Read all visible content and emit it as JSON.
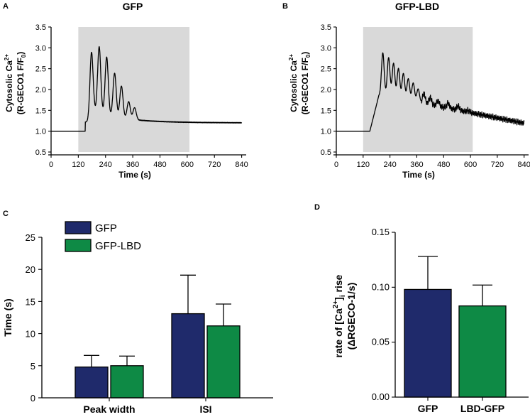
{
  "figure": {
    "panel_letters": [
      "A",
      "B",
      "C",
      "D"
    ]
  },
  "colors": {
    "gfp": "#1f2a6b",
    "gfp_lbd": "#0e8a45",
    "stim_shade": "#d9d9d9",
    "trace": "#000000"
  },
  "chart_data": [
    {
      "type": "line",
      "panel": "A",
      "title": "GFP",
      "xlabel": "Time (s)",
      "ylabel_line1": "Cytosolic Ca",
      "ylabel_line1_sup": "2+",
      "ylabel_line2": "(R-GECO1 F/F",
      "ylabel_line2_sub": "0",
      "ylabel_line2_end": ")",
      "xlim": [
        0,
        860
      ],
      "ylim": [
        0.5,
        3.5
      ],
      "xticks": [
        0,
        120,
        240,
        360,
        480,
        600,
        720,
        840
      ],
      "yticks": [
        "0.5",
        "1.0",
        "1.5",
        "2.0",
        "2.5",
        "3.0",
        "3.5"
      ],
      "shaded_region": [
        120,
        610
      ],
      "baseline": 1.0,
      "peaks": [
        {
          "t": 178,
          "amp": 3.03,
          "floor": 1.45
        },
        {
          "t": 212,
          "amp": 3.05,
          "floor": 1.45
        },
        {
          "t": 245,
          "amp": 2.82,
          "floor": 1.42
        },
        {
          "t": 280,
          "amp": 2.45,
          "floor": 1.4
        },
        {
          "t": 310,
          "amp": 2.15,
          "floor": 1.38
        },
        {
          "t": 342,
          "amp": 1.78,
          "floor": 1.36
        },
        {
          "t": 368,
          "amp": 1.62,
          "floor": 1.33
        }
      ],
      "end_value": 1.15
    },
    {
      "type": "line",
      "panel": "B",
      "title": "GFP-LBD",
      "xlabel": "Time (s)",
      "ylabel_line1": "Cytosolic Ca",
      "ylabel_line1_sup": "2+",
      "ylabel_line2": "(R-GECO1 F/F",
      "ylabel_line2_sub": "0",
      "ylabel_line2_end": ")",
      "xlim": [
        0,
        860
      ],
      "ylim": [
        0.5,
        3.5
      ],
      "xticks": [
        0,
        120,
        240,
        360,
        480,
        600,
        720,
        840
      ],
      "yticks": [
        "0.5",
        "1.0",
        "1.5",
        "2.0",
        "2.5",
        "3.0",
        "3.5"
      ],
      "shaded_region": [
        120,
        610
      ],
      "baseline": 1.0,
      "peaks": [
        {
          "t": 208,
          "amp": 2.83,
          "floor": 1.8
        },
        {
          "t": 234,
          "amp": 2.73,
          "floor": 1.8
        },
        {
          "t": 256,
          "amp": 2.62,
          "floor": 1.8
        },
        {
          "t": 278,
          "amp": 2.52,
          "floor": 1.8
        },
        {
          "t": 300,
          "amp": 2.42,
          "floor": 1.8
        },
        {
          "t": 322,
          "amp": 2.32,
          "floor": 1.8
        },
        {
          "t": 344,
          "amp": 2.24,
          "floor": 1.8
        },
        {
          "t": 366,
          "amp": 2.12,
          "floor": 1.8
        },
        {
          "t": 392,
          "amp": 2.02,
          "floor": 1.78
        },
        {
          "t": 420,
          "amp": 1.92,
          "floor": 1.75
        },
        {
          "t": 455,
          "amp": 1.85,
          "floor": 1.72
        },
        {
          "t": 500,
          "amp": 1.8,
          "floor": 1.68
        },
        {
          "t": 545,
          "amp": 1.75,
          "floor": 1.65
        },
        {
          "t": 590,
          "amp": 1.62,
          "floor": 1.58
        }
      ],
      "end_value": 1.2
    },
    {
      "type": "bar",
      "panel": "C",
      "ylabel": "Time (s)",
      "ylim": [
        0,
        25
      ],
      "yticks": [
        "0",
        "5",
        "10",
        "15",
        "20",
        "25"
      ],
      "categories": [
        "Peak width",
        "ISI"
      ],
      "series": [
        {
          "name": "GFP",
          "values": [
            4.8,
            13.1
          ],
          "errors": [
            1.8,
            6.0
          ]
        },
        {
          "name": "GFP-LBD",
          "values": [
            5.0,
            11.2
          ],
          "errors": [
            1.5,
            3.4
          ]
        }
      ],
      "legend": [
        "GFP",
        "GFP-LBD"
      ]
    },
    {
      "type": "bar",
      "panel": "D",
      "ylabel_line1_pre": "rate of [Ca",
      "ylabel_line1_sup": "2+",
      "ylabel_line1_mid": "]",
      "ylabel_line1_sub": "i",
      "ylabel_line1_post": " rise",
      "ylabel_line2": "(ΔRGECO-1/s)",
      "ylim": [
        0,
        0.15
      ],
      "yticks": [
        "0.00",
        "0.05",
        "0.10",
        "0.15"
      ],
      "categories": [
        "GFP",
        "LBD-GFP"
      ],
      "values": [
        0.098,
        0.083
      ],
      "errors": [
        0.03,
        0.019
      ]
    }
  ]
}
